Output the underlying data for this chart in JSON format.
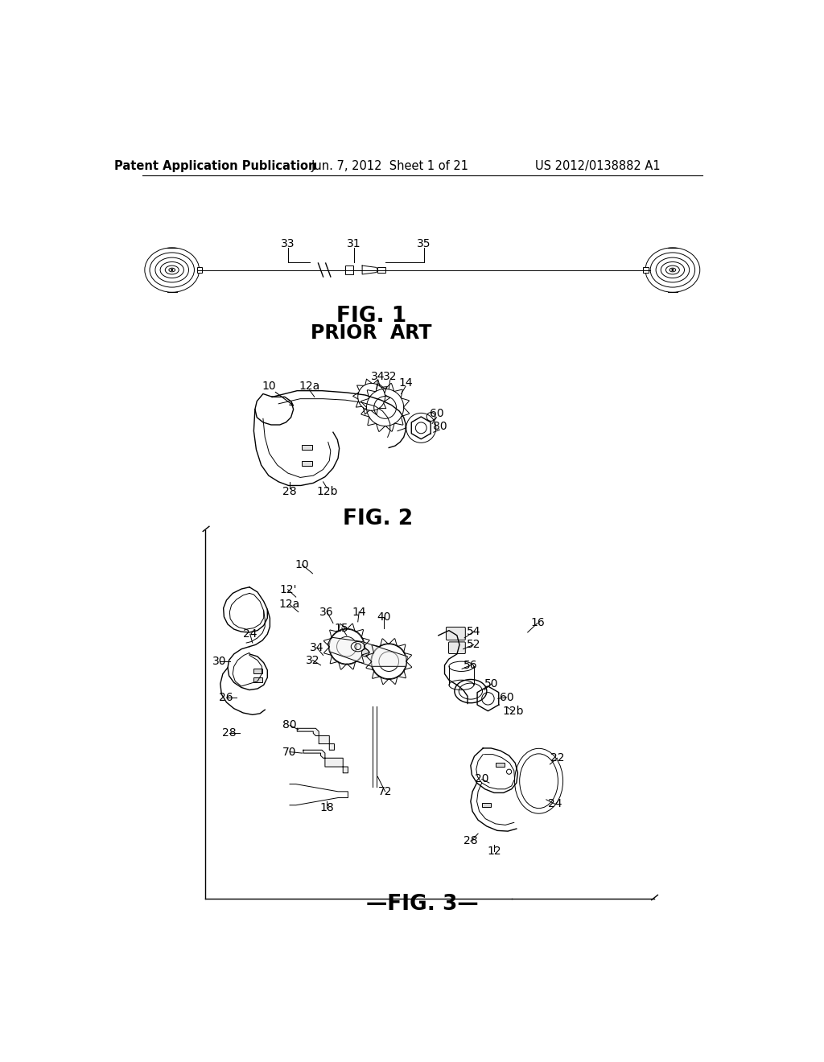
{
  "background_color": "#ffffff",
  "fig_width": 10.24,
  "fig_height": 13.2,
  "header_left": "Patent Application Publication",
  "header_center": "Jun. 7, 2012  Sheet 1 of 21",
  "header_right": "US 2012/0138882 A1",
  "fig1_label": "FIG. 1",
  "fig1_sublabel": "PRIOR  ART",
  "fig2_label": "FIG. 2",
  "fig3_label": "FIG. 3",
  "text_color": "#000000",
  "line_color": "#000000",
  "header_fontsize": 10.5,
  "figure_label_fontsize": 19,
  "sublabel_fontsize": 17,
  "ref_fontsize": 10,
  "dpi": 100
}
